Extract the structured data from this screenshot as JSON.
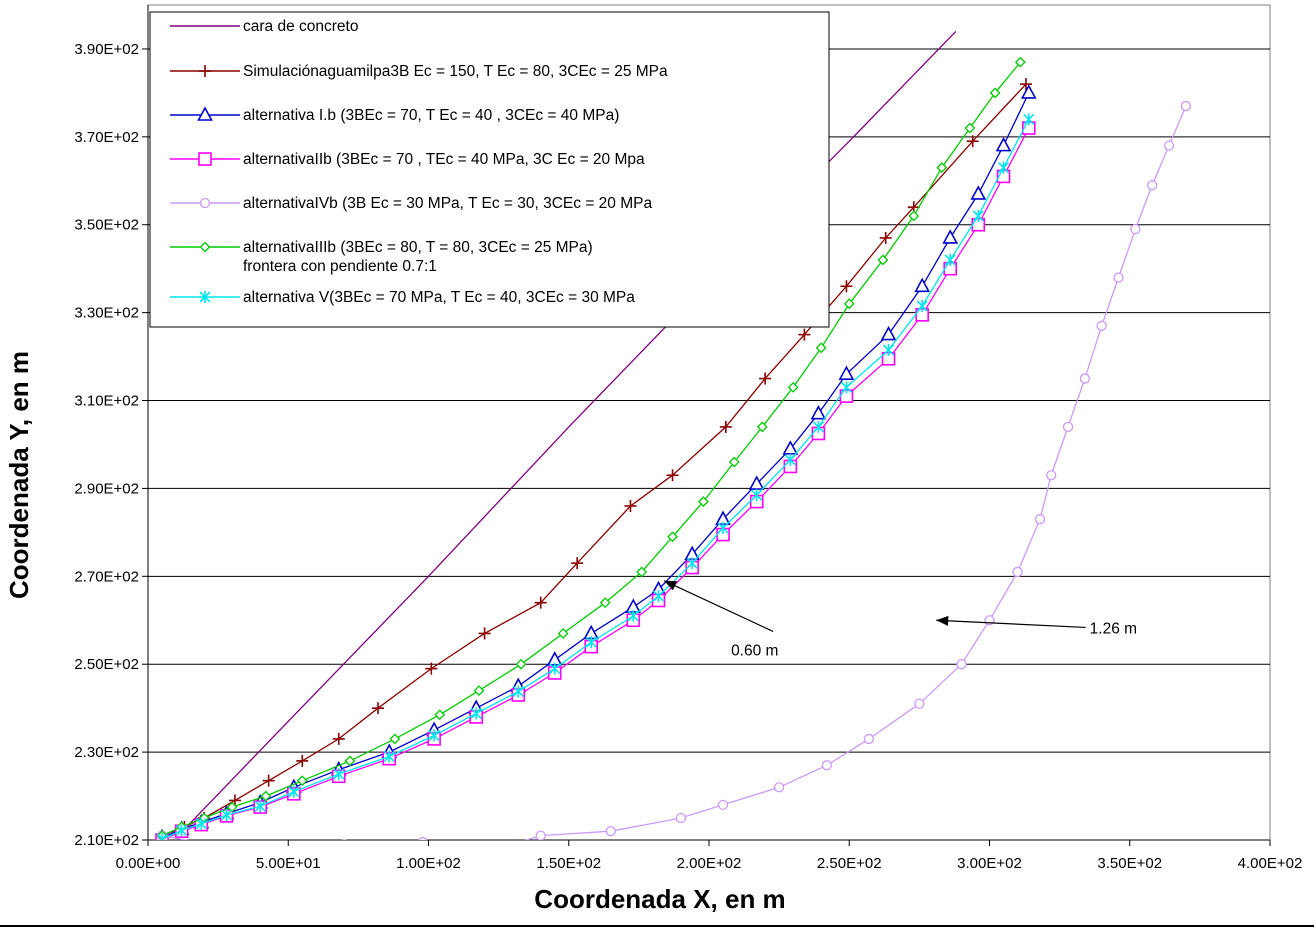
{
  "chart_data": {
    "type": "line",
    "xlabel": "Coordenada X, en m",
    "ylabel": "Coordenada Y, en m",
    "xlim": [
      0,
      400
    ],
    "ylim": [
      210,
      400
    ],
    "x_ticks": [
      "0.00E+00",
      "5.00E+01",
      "1.00E+02",
      "1.50E+02",
      "2.00E+02",
      "2.50E+02",
      "3.00E+02",
      "3.50E+02",
      "4.00E+02"
    ],
    "x_tick_values": [
      0,
      50,
      100,
      150,
      200,
      250,
      300,
      350,
      400
    ],
    "y_ticks": [
      "2.10E+02",
      "2.30E+02",
      "2.50E+02",
      "2.70E+02",
      "2.90E+02",
      "3.10E+02",
      "3.30E+02",
      "3.50E+02",
      "3.70E+02",
      "3.90E+02"
    ],
    "y_tick_values": [
      210,
      230,
      250,
      270,
      290,
      310,
      330,
      350,
      370,
      390
    ],
    "grid": "horizontal",
    "legend_position": "top-left",
    "series": [
      {
        "name": "cara de concreto",
        "color": "#800080",
        "marker": "none",
        "x": [
          10,
          50,
          100,
          150,
          200,
          250,
          288
        ],
        "y": [
          210.5,
          237,
          270,
          304,
          337,
          369,
          394
        ]
      },
      {
        "name": "Simulaciónaguamilpa3B Ec = 150, T Ec = 80, 3CEc = 25 MPa",
        "color": "#8B0000",
        "marker": "plus",
        "x": [
          5,
          13,
          20,
          31,
          43,
          55,
          68,
          82,
          101,
          120,
          140,
          153,
          172,
          187,
          206,
          220,
          234,
          249,
          263,
          273,
          294,
          313
        ],
        "y": [
          211,
          213,
          215,
          219,
          223.5,
          228,
          233,
          240,
          249,
          257,
          264,
          273,
          286,
          293,
          304,
          315,
          325,
          336,
          347,
          354,
          369,
          382
        ]
      },
      {
        "name": "alternativa I.b (3BEc = 70, T Ec = 40 , 3CEc = 40 MPa)",
        "color": "#0000CD",
        "marker": "triangle",
        "x": [
          5,
          12,
          19,
          28,
          40,
          52,
          68,
          86,
          102,
          117,
          132,
          145,
          158,
          173,
          182,
          194,
          205,
          217,
          229,
          239,
          249,
          264,
          276,
          286,
          296,
          305,
          314
        ],
        "y": [
          210.5,
          212.5,
          214,
          216,
          218.5,
          222,
          226,
          230,
          235,
          240,
          245,
          251,
          257,
          263,
          267,
          275,
          283,
          291,
          299,
          307,
          316,
          325,
          336,
          347,
          357,
          368,
          380
        ]
      },
      {
        "name": "alternativaIIb  (3BEc = 70 , TEc = 40 MPa,  3C Ec = 20 Mpa",
        "color": "#FF00FF",
        "marker": "square",
        "x": [
          5,
          12,
          19,
          28,
          40,
          52,
          68,
          86,
          102,
          117,
          132,
          145,
          158,
          173,
          182,
          194,
          205,
          217,
          229,
          239,
          249,
          264,
          276,
          286,
          296,
          305,
          314
        ],
        "y": [
          210,
          212,
          213.5,
          215.5,
          217.5,
          220.5,
          224.5,
          228.5,
          233,
          238,
          243,
          248,
          254,
          260,
          264.5,
          272,
          279.5,
          287,
          295,
          302.5,
          311,
          319.5,
          329.5,
          340,
          350,
          361,
          372
        ]
      },
      {
        "name": "alternativaIVb (3B Ec = 30 MPa,  T Ec = 30,  3CEc = 20 MPa",
        "color": "#CC99FF",
        "marker": "circle",
        "x": [
          5,
          30,
          55,
          70,
          98,
          120,
          140,
          165,
          190,
          205,
          225,
          242,
          257,
          275,
          290,
          300,
          310,
          318,
          322,
          328,
          334,
          340,
          346,
          352,
          358,
          364,
          370
        ],
        "y": [
          211,
          208,
          205,
          209,
          209.5,
          207,
          211,
          212,
          215,
          218,
          222,
          227,
          233,
          241,
          250,
          260,
          271,
          283,
          293,
          304,
          315,
          327,
          338,
          349,
          359,
          368,
          377
        ]
      },
      {
        "name": "alternativaIIIb (3BEc = 80,  T = 80,  3CEc = 25 MPa) frontera con pendiente 0.7:1",
        "color": "#00CC00",
        "marker": "diamond",
        "x": [
          5,
          12,
          20,
          30,
          42,
          55,
          72,
          88,
          104,
          118,
          133,
          148,
          163,
          176,
          187,
          198,
          209,
          219,
          230,
          240,
          250,
          262,
          273,
          283,
          293,
          302,
          311
        ],
        "y": [
          211,
          213,
          215,
          217.5,
          220,
          223.5,
          228,
          233,
          238.5,
          244,
          250,
          257,
          264,
          271,
          279,
          287,
          296,
          304,
          313,
          322,
          332,
          342,
          352,
          363,
          372,
          380,
          387
        ]
      },
      {
        "name": "alternativa V(3BEc = 70 MPa,  T Ec = 40,  3CEc = 30 MPa",
        "color": "#00E5EE",
        "marker": "asterisk",
        "x": [
          5,
          12,
          19,
          28,
          40,
          52,
          68,
          86,
          102,
          117,
          132,
          145,
          158,
          173,
          182,
          194,
          205,
          217,
          229,
          239,
          249,
          264,
          276,
          286,
          296,
          305,
          314
        ],
        "y": [
          210.2,
          212.2,
          213.7,
          215.7,
          217.7,
          221,
          225,
          229,
          233.8,
          238.8,
          243.8,
          249,
          255,
          261,
          265.5,
          273,
          281,
          288.5,
          296.5,
          304,
          313,
          321.5,
          331.5,
          342,
          352,
          363,
          374
        ]
      }
    ],
    "annotations": [
      {
        "text": "0.60 m",
        "x": 215,
        "y": 252,
        "arrow_to_x": 184,
        "arrow_to_y": 269
      },
      {
        "text": "1.26 m",
        "x": 335,
        "y": 257,
        "arrow_to_x": 281,
        "arrow_to_y": 260
      }
    ]
  }
}
